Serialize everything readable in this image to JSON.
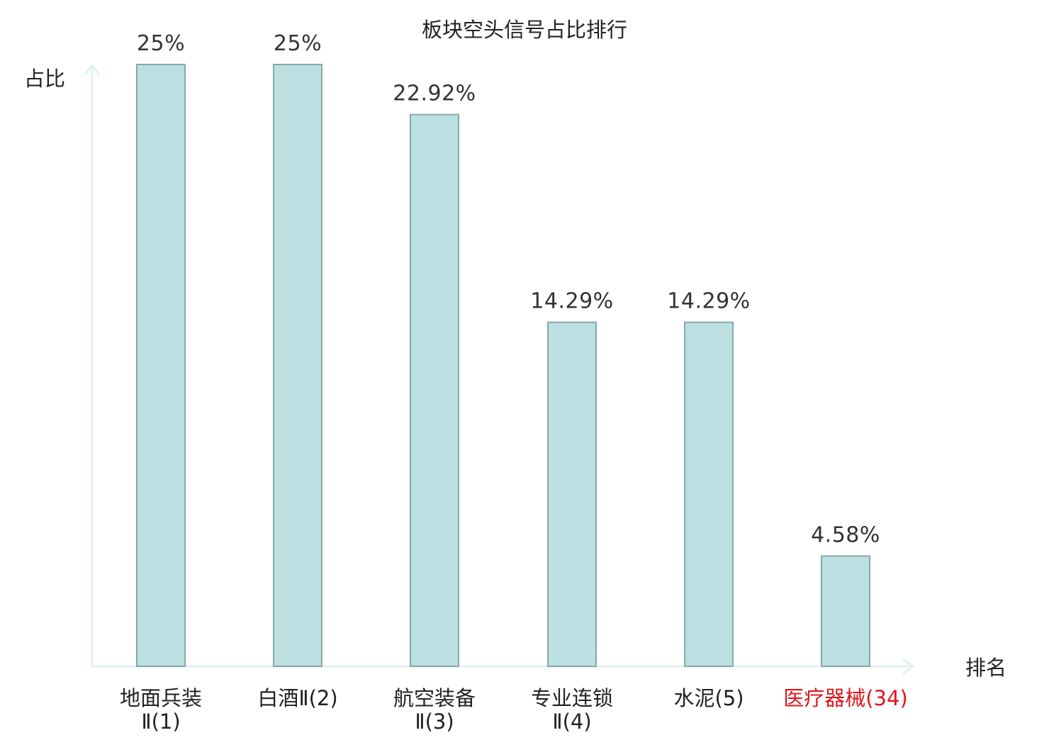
{
  "chart_data": {
    "type": "bar",
    "title": "板块空头信号占比排行",
    "ylabel": "占比",
    "xlabel": "排名",
    "ylim": [
      0,
      25
    ],
    "grid": false,
    "legend": "none",
    "categories": [
      {
        "lines": [
          "地面兵装",
          "Ⅱ(1)"
        ],
        "highlight": false
      },
      {
        "lines": [
          "白酒Ⅱ(2)"
        ],
        "highlight": false
      },
      {
        "lines": [
          "航空装备",
          "Ⅱ(3)"
        ],
        "highlight": false
      },
      {
        "lines": [
          "专业连锁",
          "Ⅱ(4)"
        ],
        "highlight": false
      },
      {
        "lines": [
          "水泥(5)"
        ],
        "highlight": false
      },
      {
        "lines": [
          "医疗器械(34)"
        ],
        "highlight": true
      }
    ],
    "values": [
      25,
      25,
      22.92,
      14.29,
      14.29,
      4.58
    ],
    "value_labels": [
      "25%",
      "25%",
      "22.92%",
      "14.29%",
      "14.29%",
      "4.58%"
    ]
  },
  "colors": {
    "bar_fill": "#bce0e2",
    "bar_stroke": "#87a8a9",
    "axis": "#e0f2ef",
    "text": "#333333",
    "label_text": "#222222",
    "highlight_text": "#e0161c"
  }
}
